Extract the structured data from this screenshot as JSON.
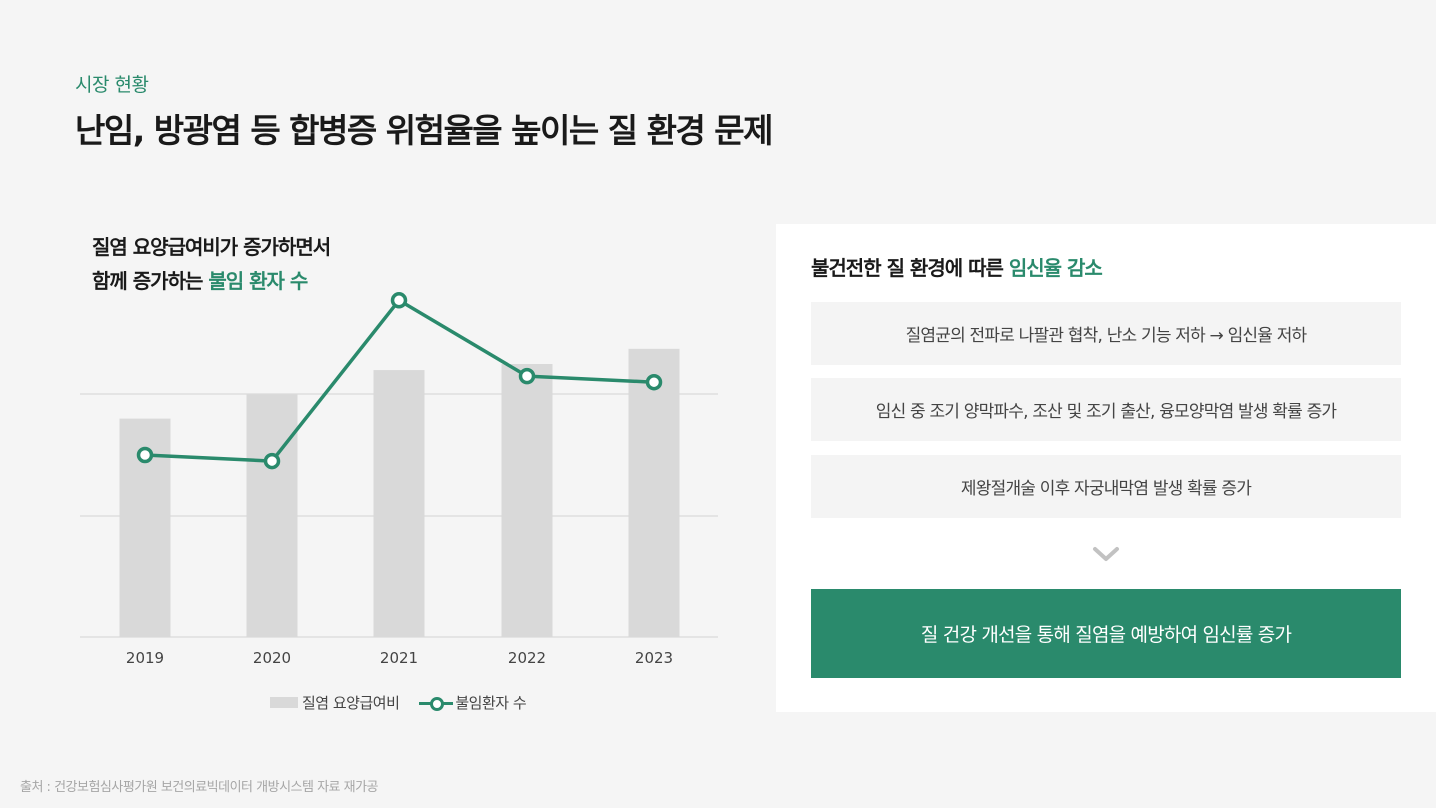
{
  "header": {
    "eyebrow": "시장 현황",
    "title": "난임, 방광염 등 합병증 위험율을 높이는 질 환경 문제"
  },
  "chart_heading": {
    "line1": "질염 요양급여비가 증가하면서",
    "line2_prefix": "함께 증가하는 ",
    "line2_accent": "불임 환자 수"
  },
  "legend": {
    "bar_label": "질염 요양급여비",
    "line_label": "불임환자 수"
  },
  "panel": {
    "title_prefix": "불건전한 질 환경에 따른 ",
    "title_accent": "임신율 감소",
    "reasons": [
      "질염균의 전파로 나팔관 협착, 난소 기능 저하 → 임신율 저하",
      "임신 중 조기 양막파수, 조산 및 조기 출산, 융모양막염 발생 확률 증가",
      "제왕절개술 이후 자궁내막염 발생 확률 증가"
    ],
    "chevron_icon": "chevron-down-icon",
    "result": "질 건강 개선을 통해 질염을 예방하여 임신률 증가"
  },
  "source": "출처 : 건강보험심사평가원 보건의료빅데이터 개방시스템 자료 재가공",
  "colors": {
    "accent": "#2a8a6c",
    "bar": "#d9d9d9",
    "background": "#f5f5f5",
    "panel": "#ffffff",
    "reason_bg": "#f4f4f4"
  },
  "chart_data": {
    "type": "bar",
    "title": "질염 요양급여비가 증가하면서 함께 증가하는 불임 환자 수",
    "categories": [
      "2019",
      "2020",
      "2021",
      "2022",
      "2023"
    ],
    "series": [
      {
        "name": "질염 요양급여비",
        "type": "bar",
        "values": [
          72,
          80,
          88,
          90,
          95
        ]
      },
      {
        "name": "불임환자 수",
        "type": "line",
        "values": [
          60,
          58,
          111,
          86,
          84
        ]
      }
    ],
    "xlabel": "",
    "ylabel": "",
    "ylim": [
      0,
      120
    ],
    "grid": true,
    "legend_position": "bottom",
    "note": "Axis has no numeric tick labels; values are relative estimates from gridlines (gridlines at 40, 80 of 120 scale)."
  }
}
